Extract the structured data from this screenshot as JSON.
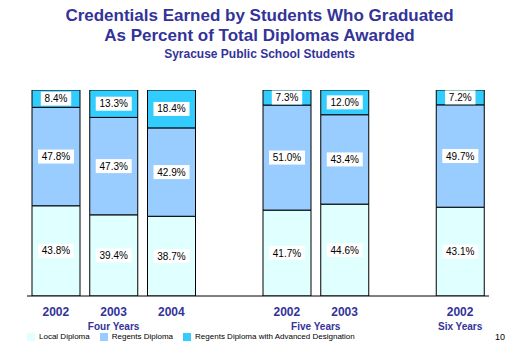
{
  "chart_data": {
    "type": "bar",
    "title": "Credentials Earned by Students Who Graduated\nAs Percent of Total Diplomas Awarded",
    "subtitle": "Syracuse Public School Students",
    "categories": [
      "2002",
      "2003",
      "2004",
      null,
      "2002",
      "2003",
      null,
      "2002"
    ],
    "groups": [
      "Four Years",
      "Four Years",
      "Four Years",
      null,
      "Five Years",
      "Five Years",
      null,
      "Six Years"
    ],
    "series": [
      {
        "name": "Local Diploma",
        "color": "#E0FFFF",
        "values": [
          43.8,
          39.4,
          38.7,
          null,
          41.7,
          44.6,
          null,
          43.1
        ],
        "value_labels": [
          "43.8%",
          "39.4%",
          "38.7%",
          null,
          "41.7%",
          "44.6%",
          null,
          "43.1%"
        ]
      },
      {
        "name": "Regents Diploma",
        "color": "#99CCFF",
        "values": [
          47.8,
          47.3,
          42.9,
          null,
          51.0,
          43.4,
          null,
          49.7
        ],
        "value_labels": [
          "47.8%",
          "47.3%",
          "42.9%",
          null,
          "51.0%",
          "43.4%",
          null,
          "49.7%"
        ]
      },
      {
        "name": "Regents Diploma with Advanced Designation",
        "color": "#33CCFF",
        "values": [
          8.4,
          13.3,
          18.4,
          null,
          7.3,
          12.0,
          null,
          7.2
        ],
        "value_labels": [
          "8.4%",
          "13.3%",
          "18.4%",
          null,
          "7.3%",
          "12.0%",
          null,
          "7.2%"
        ]
      }
    ],
    "ylim": [
      0,
      100
    ],
    "stacked": true,
    "data_labels": true,
    "tick_labels": "x",
    "grid": false,
    "legend": "bottom",
    "annotations": [
      "10"
    ]
  }
}
